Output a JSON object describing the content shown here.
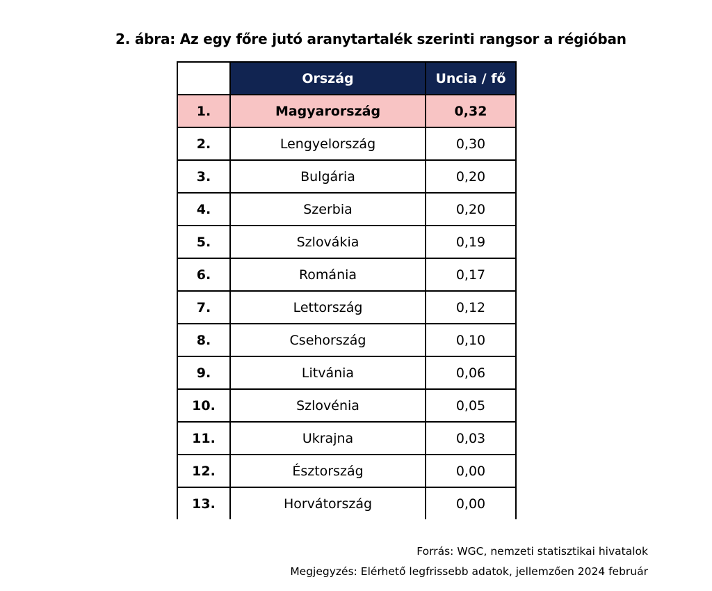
{
  "title": "2.  ábra: Az egy főre jutó aranytartalék szerinti rangsor a régióban",
  "table": {
    "headers": {
      "rank": "",
      "country": "Ország",
      "value": "Uncia / fő"
    },
    "rows": [
      {
        "rank": "1.",
        "country": "Magyarország",
        "value": "0,32"
      },
      {
        "rank": "2.",
        "country": "Lengyelország",
        "value": "0,30"
      },
      {
        "rank": "3.",
        "country": "Bulgária",
        "value": "0,20"
      },
      {
        "rank": "4.",
        "country": "Szerbia",
        "value": "0,20"
      },
      {
        "rank": "5.",
        "country": "Szlovákia",
        "value": "0,19"
      },
      {
        "rank": "6.",
        "country": "Románia",
        "value": "0,17"
      },
      {
        "rank": "7.",
        "country": "Lettország",
        "value": "0,12"
      },
      {
        "rank": "8.",
        "country": "Csehország",
        "value": "0,10"
      },
      {
        "rank": "9.",
        "country": "Litvánia",
        "value": "0,06"
      },
      {
        "rank": "10.",
        "country": "Szlovénia",
        "value": "0,05"
      },
      {
        "rank": "11.",
        "country": "Ukrajna",
        "value": "0,03"
      },
      {
        "rank": "12.",
        "country": "Észtország",
        "value": "0,00"
      },
      {
        "rank": "13.",
        "country": "Horvátország",
        "value": "0,00"
      }
    ],
    "colors": {
      "header_background": "#112451",
      "header_text": "#ffffff",
      "highlight_row": "#f8c4c4"
    }
  },
  "footer": {
    "source": "Forrás: WGC, nemzeti statisztikai hivatalok",
    "note": "Megjegyzés: Elérhető legfrissebb adatok, jellemzően 2024 február"
  }
}
